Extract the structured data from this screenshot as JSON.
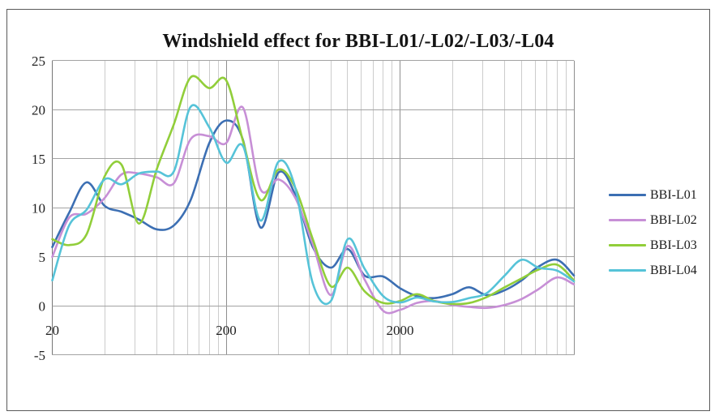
{
  "window": {
    "background": "#ffffff",
    "frame_border_color": "#5a5a5a"
  },
  "chart_data": {
    "type": "line",
    "title": "Windshield effect for BBI-L01/-L02/-L03/-L04",
    "smoothed": true,
    "x_scale": "log",
    "x_range": [
      20,
      20000
    ],
    "y_range": [
      -5,
      25
    ],
    "x_ticks": [
      20,
      200,
      2000
    ],
    "y_ticks": [
      25,
      20,
      15,
      10,
      5,
      0,
      -5
    ],
    "grid": {
      "y_major": true,
      "x_major_decades": [
        20,
        200,
        2000,
        20000
      ],
      "x_minor_multiples": [
        2,
        3,
        4,
        5,
        6,
        7,
        8,
        9
      ],
      "minor_color": "#cccccc",
      "major_color": "#8f8f8f",
      "horizontal_color": "#a3a3a3"
    },
    "legend_position": "right",
    "x": [
      20,
      25,
      31.5,
      40,
      50,
      63,
      80,
      100,
      125,
      160,
      200,
      250,
      315,
      400,
      500,
      630,
      800,
      1000,
      1250,
      1600,
      2000,
      2500,
      3150,
      4000,
      5000,
      6300,
      8000,
      10000,
      12500,
      16000,
      20000
    ],
    "series": [
      {
        "name": "BBI-L01",
        "color": "#3c6fb3",
        "values": [
          6.0,
          9.5,
          12.6,
          10.2,
          9.6,
          8.8,
          7.8,
          8.2,
          10.8,
          16.6,
          18.9,
          16.9,
          8.0,
          13.6,
          11.3,
          6.0,
          3.9,
          5.8,
          3.1,
          3.0,
          1.8,
          1.0,
          0.8,
          1.2,
          1.9,
          1.1,
          1.6,
          2.6,
          4.0,
          4.7,
          3.1
        ]
      },
      {
        "name": "BBI-L02",
        "color": "#c78fd6",
        "values": [
          5.0,
          9.0,
          9.4,
          11.0,
          13.4,
          13.5,
          13.1,
          12.5,
          17.0,
          17.3,
          16.6,
          20.2,
          11.9,
          12.9,
          11.0,
          6.3,
          1.1,
          6.1,
          2.7,
          -0.5,
          -0.4,
          0.3,
          0.5,
          0.1,
          -0.1,
          -0.2,
          0.1,
          0.7,
          1.7,
          2.9,
          2.2
        ]
      },
      {
        "name": "BBI-L03",
        "color": "#91ce3a",
        "values": [
          6.8,
          6.2,
          7.3,
          13.2,
          14.4,
          8.4,
          14.0,
          18.5,
          23.3,
          22.2,
          23.0,
          16.8,
          10.8,
          13.9,
          12.0,
          6.8,
          2.0,
          3.9,
          1.5,
          0.3,
          0.5,
          1.2,
          0.5,
          0.2,
          0.3,
          0.9,
          1.9,
          2.8,
          3.7,
          4.2,
          2.6
        ]
      },
      {
        "name": "BBI-L04",
        "color": "#56c3d8",
        "values": [
          2.6,
          8.2,
          9.8,
          12.9,
          12.4,
          13.5,
          13.7,
          13.7,
          20.3,
          18.2,
          14.6,
          16.3,
          8.7,
          14.7,
          12.0,
          2.3,
          0.5,
          6.8,
          3.8,
          1.0,
          0.35,
          0.85,
          0.45,
          0.4,
          0.8,
          1.3,
          3.1,
          4.7,
          3.9,
          3.6,
          2.5
        ]
      }
    ]
  }
}
